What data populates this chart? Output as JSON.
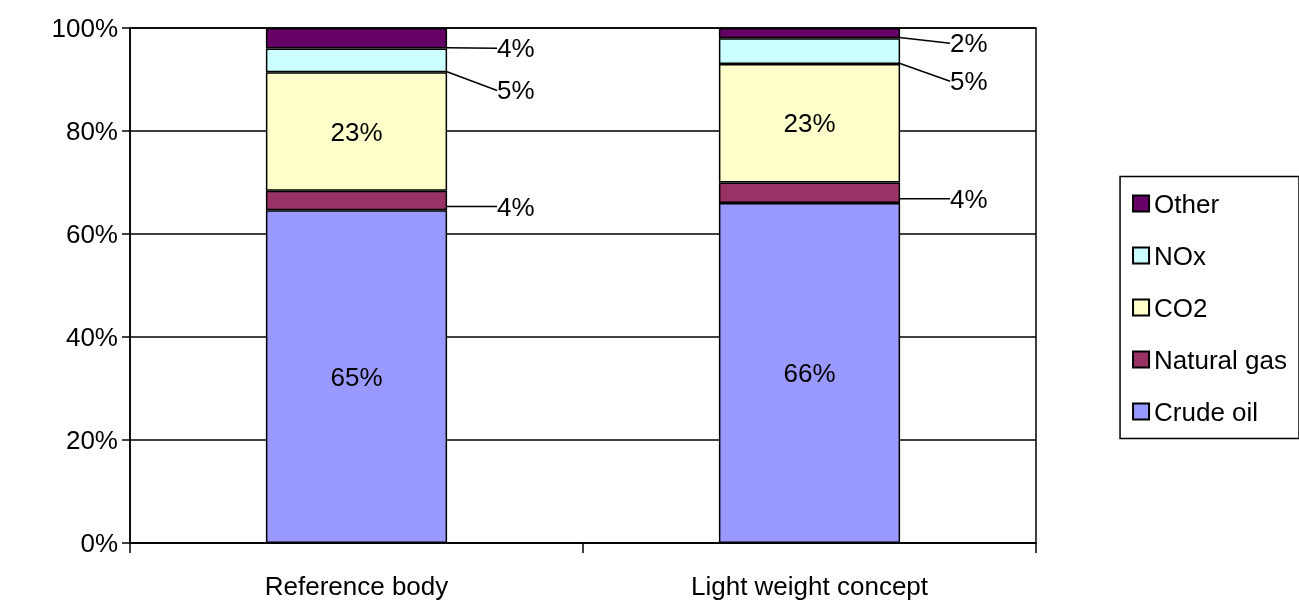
{
  "chart_data": {
    "type": "bar",
    "stacked": true,
    "categories": [
      "Reference body",
      "Light weight concept"
    ],
    "series": [
      {
        "name": "Crude oil",
        "color": "#9999ff",
        "values": [
          64.6,
          66
        ],
        "value_labels": [
          "65%",
          "66%"
        ]
      },
      {
        "name": "Natural gas",
        "color": "#993366",
        "values": [
          3.8,
          4
        ],
        "value_labels": [
          "4%",
          "4%"
        ]
      },
      {
        "name": "CO2",
        "color": "#ffffcc",
        "values": [
          23,
          23
        ],
        "value_labels": [
          "23%",
          "23%"
        ]
      },
      {
        "name": "NOx",
        "color": "#ccffff",
        "values": [
          4.6,
          5
        ],
        "value_labels": [
          "5%",
          "5%"
        ]
      },
      {
        "name": "Other",
        "color": "#660066",
        "values": [
          4,
          2
        ],
        "value_labels": [
          "4%",
          "2%"
        ]
      }
    ],
    "ylim": [
      0,
      100
    ],
    "yticks": [
      {
        "value": 0,
        "label": "0%"
      },
      {
        "value": 20,
        "label": "20%"
      },
      {
        "value": 40,
        "label": "40%"
      },
      {
        "value": 60,
        "label": "60%"
      },
      {
        "value": 80,
        "label": "80%"
      },
      {
        "value": 100,
        "label": "100%"
      }
    ],
    "grid": "y",
    "legend": "right"
  }
}
